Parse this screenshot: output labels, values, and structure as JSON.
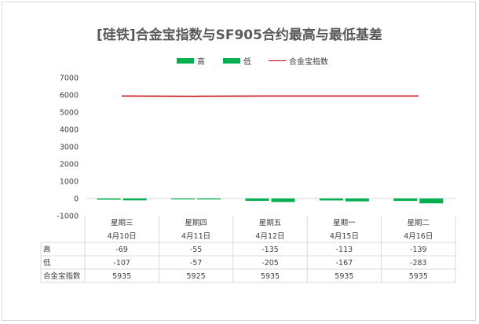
{
  "chart_data": {
    "type": "bar",
    "title": "[硅铁]合金宝指数与SF905合约最高与最低基差",
    "categories": [
      [
        "星期三",
        "4月10日"
      ],
      [
        "星期四",
        "4月11日"
      ],
      [
        "星期五",
        "4月12日"
      ],
      [
        "星期一",
        "4月15日"
      ],
      [
        "星期二",
        "4月16日"
      ]
    ],
    "series": [
      {
        "name": "高",
        "type": "bar",
        "color": "#00b050",
        "values": [
          -69,
          -55,
          -135,
          -113,
          -139
        ]
      },
      {
        "name": "低",
        "type": "bar",
        "color": "#00b050",
        "values": [
          -107,
          -57,
          -205,
          -167,
          -283
        ]
      },
      {
        "name": "合金宝指数",
        "type": "line",
        "color": "#c00000",
        "values": [
          5935,
          5925,
          5935,
          5935,
          5935
        ]
      }
    ],
    "ylim": [
      -1000,
      7000
    ],
    "yticks": [
      -1000,
      0,
      1000,
      2000,
      3000,
      4000,
      5000,
      6000,
      7000
    ],
    "grid": false,
    "legend_position": "top",
    "data_table": true
  }
}
